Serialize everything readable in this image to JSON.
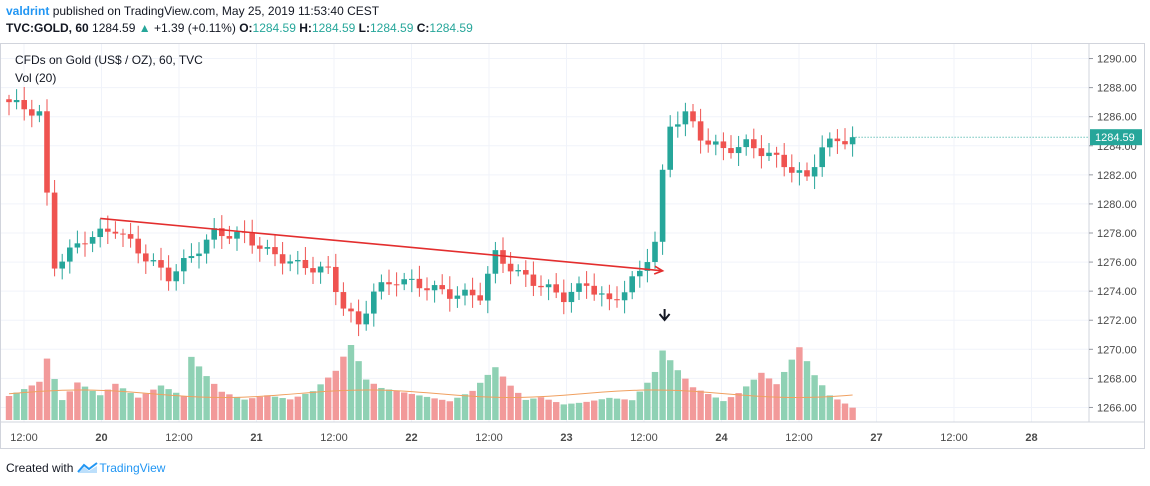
{
  "header": {
    "user": "valdrint",
    "published": "published on TradingView.com, May 25, 2019 11:53:40 CEST",
    "symbol": "TVC:GOLD, 60",
    "last": "1284.59",
    "arrow": "▲",
    "change": "+1.39 (+0.11%)",
    "o_label": "O:",
    "o_val": "1284.59",
    "h_label": "H:",
    "h_val": "1284.59",
    "l_label": "L:",
    "l_val": "1284.59",
    "c_label": "C:",
    "c_val": "1284.59"
  },
  "legend": {
    "series": "CFDs on Gold (US$ / OZ), 60, TVC",
    "volume": "Vol (20)"
  },
  "footer": {
    "created": "Created with",
    "brand": "TradingView"
  },
  "colors": {
    "up": "#26a69a",
    "down": "#ef5350",
    "trendline": "#e32e2e",
    "vol_ma": "#f0a060",
    "price_label_bg": "#26a69a"
  },
  "chart_data": {
    "type": "candlestick",
    "price_axis": {
      "ticks": [
        "1290.00",
        "1288.00",
        "1286.00",
        "1284.00",
        "1282.00",
        "1280.00",
        "1278.00",
        "1276.00",
        "1274.00",
        "1272.00",
        "1270.00",
        "1268.00",
        "1266.00"
      ],
      "range": [
        1265,
        1291
      ]
    },
    "current_price_label": "1284.59",
    "time_axis": [
      "12:00",
      "20",
      "12:00",
      "21",
      "12:00",
      "22",
      "12:00",
      "23",
      "12:00",
      "24",
      "12:00",
      "27",
      "12:00",
      "28"
    ],
    "volume_ma_label": "Vol (20)",
    "trendline": {
      "start": {
        "bar": 12,
        "price": 1279.0
      },
      "end": {
        "bar": 86,
        "price": 1275.4
      }
    },
    "annotation_arrow": {
      "bar": 86,
      "direction": "down"
    },
    "close_path": [
      [
        0,
        1287.0
      ],
      [
        4,
        1286.2
      ],
      [
        5,
        1280.5
      ],
      [
        6,
        1275.8
      ],
      [
        10,
        1277.6
      ],
      [
        14,
        1278.3
      ],
      [
        18,
        1276.3
      ],
      [
        21,
        1275.0
      ],
      [
        24,
        1276.4
      ],
      [
        27,
        1278.0
      ],
      [
        31,
        1277.8
      ],
      [
        34,
        1276.7
      ],
      [
        38,
        1275.8
      ],
      [
        42,
        1275.4
      ],
      [
        44,
        1273.0
      ],
      [
        46,
        1271.6
      ],
      [
        48,
        1274.0
      ],
      [
        51,
        1274.8
      ],
      [
        55,
        1274.3
      ],
      [
        58,
        1273.8
      ],
      [
        62,
        1273.7
      ],
      [
        64,
        1276.5
      ],
      [
        67,
        1275.2
      ],
      [
        70,
        1274.4
      ],
      [
        73,
        1273.6
      ],
      [
        76,
        1274.5
      ],
      [
        79,
        1273.2
      ],
      [
        81,
        1274.1
      ],
      [
        83,
        1275.3
      ],
      [
        85,
        1277.4
      ],
      [
        86,
        1282.0
      ],
      [
        87,
        1285.4
      ],
      [
        89,
        1286.2
      ],
      [
        91,
        1284.6
      ],
      [
        94,
        1283.7
      ],
      [
        97,
        1284.1
      ],
      [
        100,
        1283.4
      ],
      [
        103,
        1282.4
      ],
      [
        105,
        1281.7
      ],
      [
        107,
        1284.0
      ],
      [
        109,
        1284.3
      ],
      [
        111,
        1284.6
      ]
    ],
    "volume_path": [
      [
        0,
        0.4
      ],
      [
        4,
        0.6
      ],
      [
        5,
        0.95
      ],
      [
        7,
        0.3
      ],
      [
        9,
        0.55
      ],
      [
        12,
        0.35
      ],
      [
        14,
        0.5
      ],
      [
        17,
        0.3
      ],
      [
        20,
        0.45
      ],
      [
        23,
        0.3
      ],
      [
        24,
        0.8
      ],
      [
        26,
        0.55
      ],
      [
        28,
        0.35
      ],
      [
        31,
        0.25
      ],
      [
        34,
        0.3
      ],
      [
        37,
        0.25
      ],
      [
        40,
        0.35
      ],
      [
        43,
        0.6
      ],
      [
        45,
        0.95
      ],
      [
        47,
        0.5
      ],
      [
        49,
        0.4
      ],
      [
        52,
        0.35
      ],
      [
        55,
        0.3
      ],
      [
        58,
        0.25
      ],
      [
        61,
        0.4
      ],
      [
        64,
        0.75
      ],
      [
        66,
        0.5
      ],
      [
        68,
        0.3
      ],
      [
        70,
        0.35
      ],
      [
        73,
        0.25
      ],
      [
        76,
        0.3
      ],
      [
        79,
        0.35
      ],
      [
        82,
        0.3
      ],
      [
        84,
        0.55
      ],
      [
        85,
        0.7
      ],
      [
        86,
        1.0
      ],
      [
        88,
        0.7
      ],
      [
        90,
        0.45
      ],
      [
        92,
        0.35
      ],
      [
        94,
        0.25
      ],
      [
        96,
        0.35
      ],
      [
        99,
        0.6
      ],
      [
        101,
        0.45
      ],
      [
        104,
        0.9
      ],
      [
        106,
        0.55
      ],
      [
        108,
        0.3
      ],
      [
        111,
        0.15
      ]
    ],
    "volume_ma": 0.35,
    "bars": 112
  }
}
